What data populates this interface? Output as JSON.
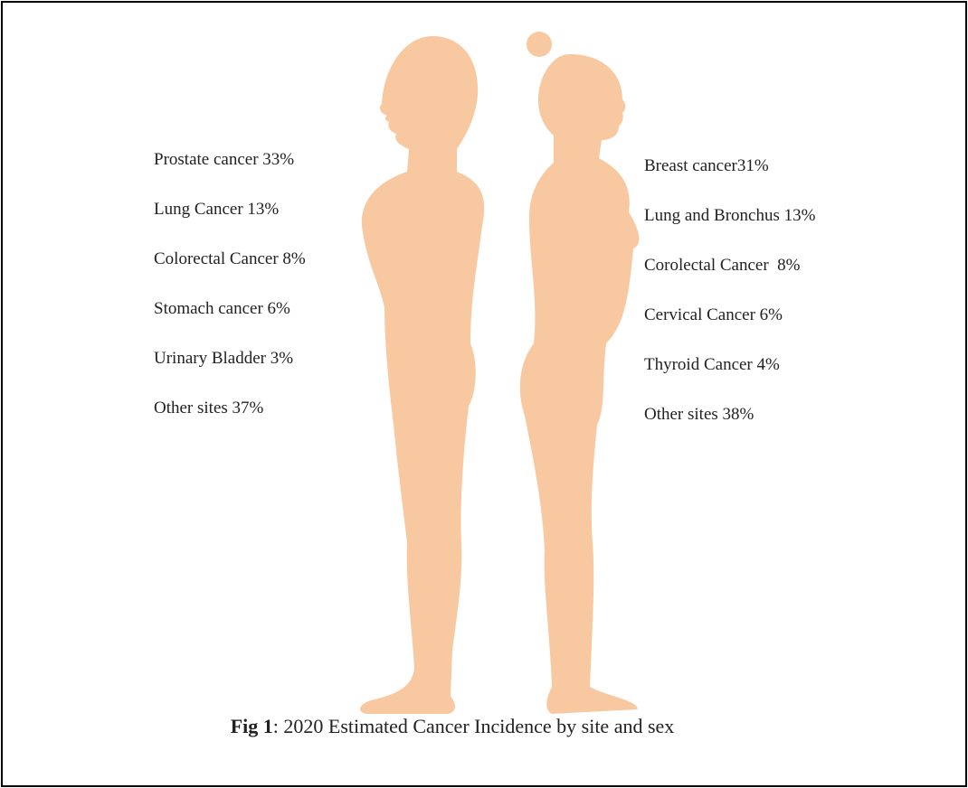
{
  "male": {
    "labels": [
      "Prostate cancer 33%",
      "Lung Cancer 13%",
      "Colorectal Cancer 8%",
      "Stomach cancer 6%",
      "Urinary Bladder 3%",
      "Other sites 37%"
    ]
  },
  "female": {
    "labels": [
      "Breast cancer31%",
      "Lung and Bronchus 13%",
      "Corolectal Cancer  8%",
      "Cervical Cancer 6%",
      "Thyroid Cancer 4%",
      "Other sites 38%"
    ]
  },
  "caption": {
    "label": "Fig 1",
    "text": ": 2020 Estimated Cancer Incidence by site and sex"
  }
}
